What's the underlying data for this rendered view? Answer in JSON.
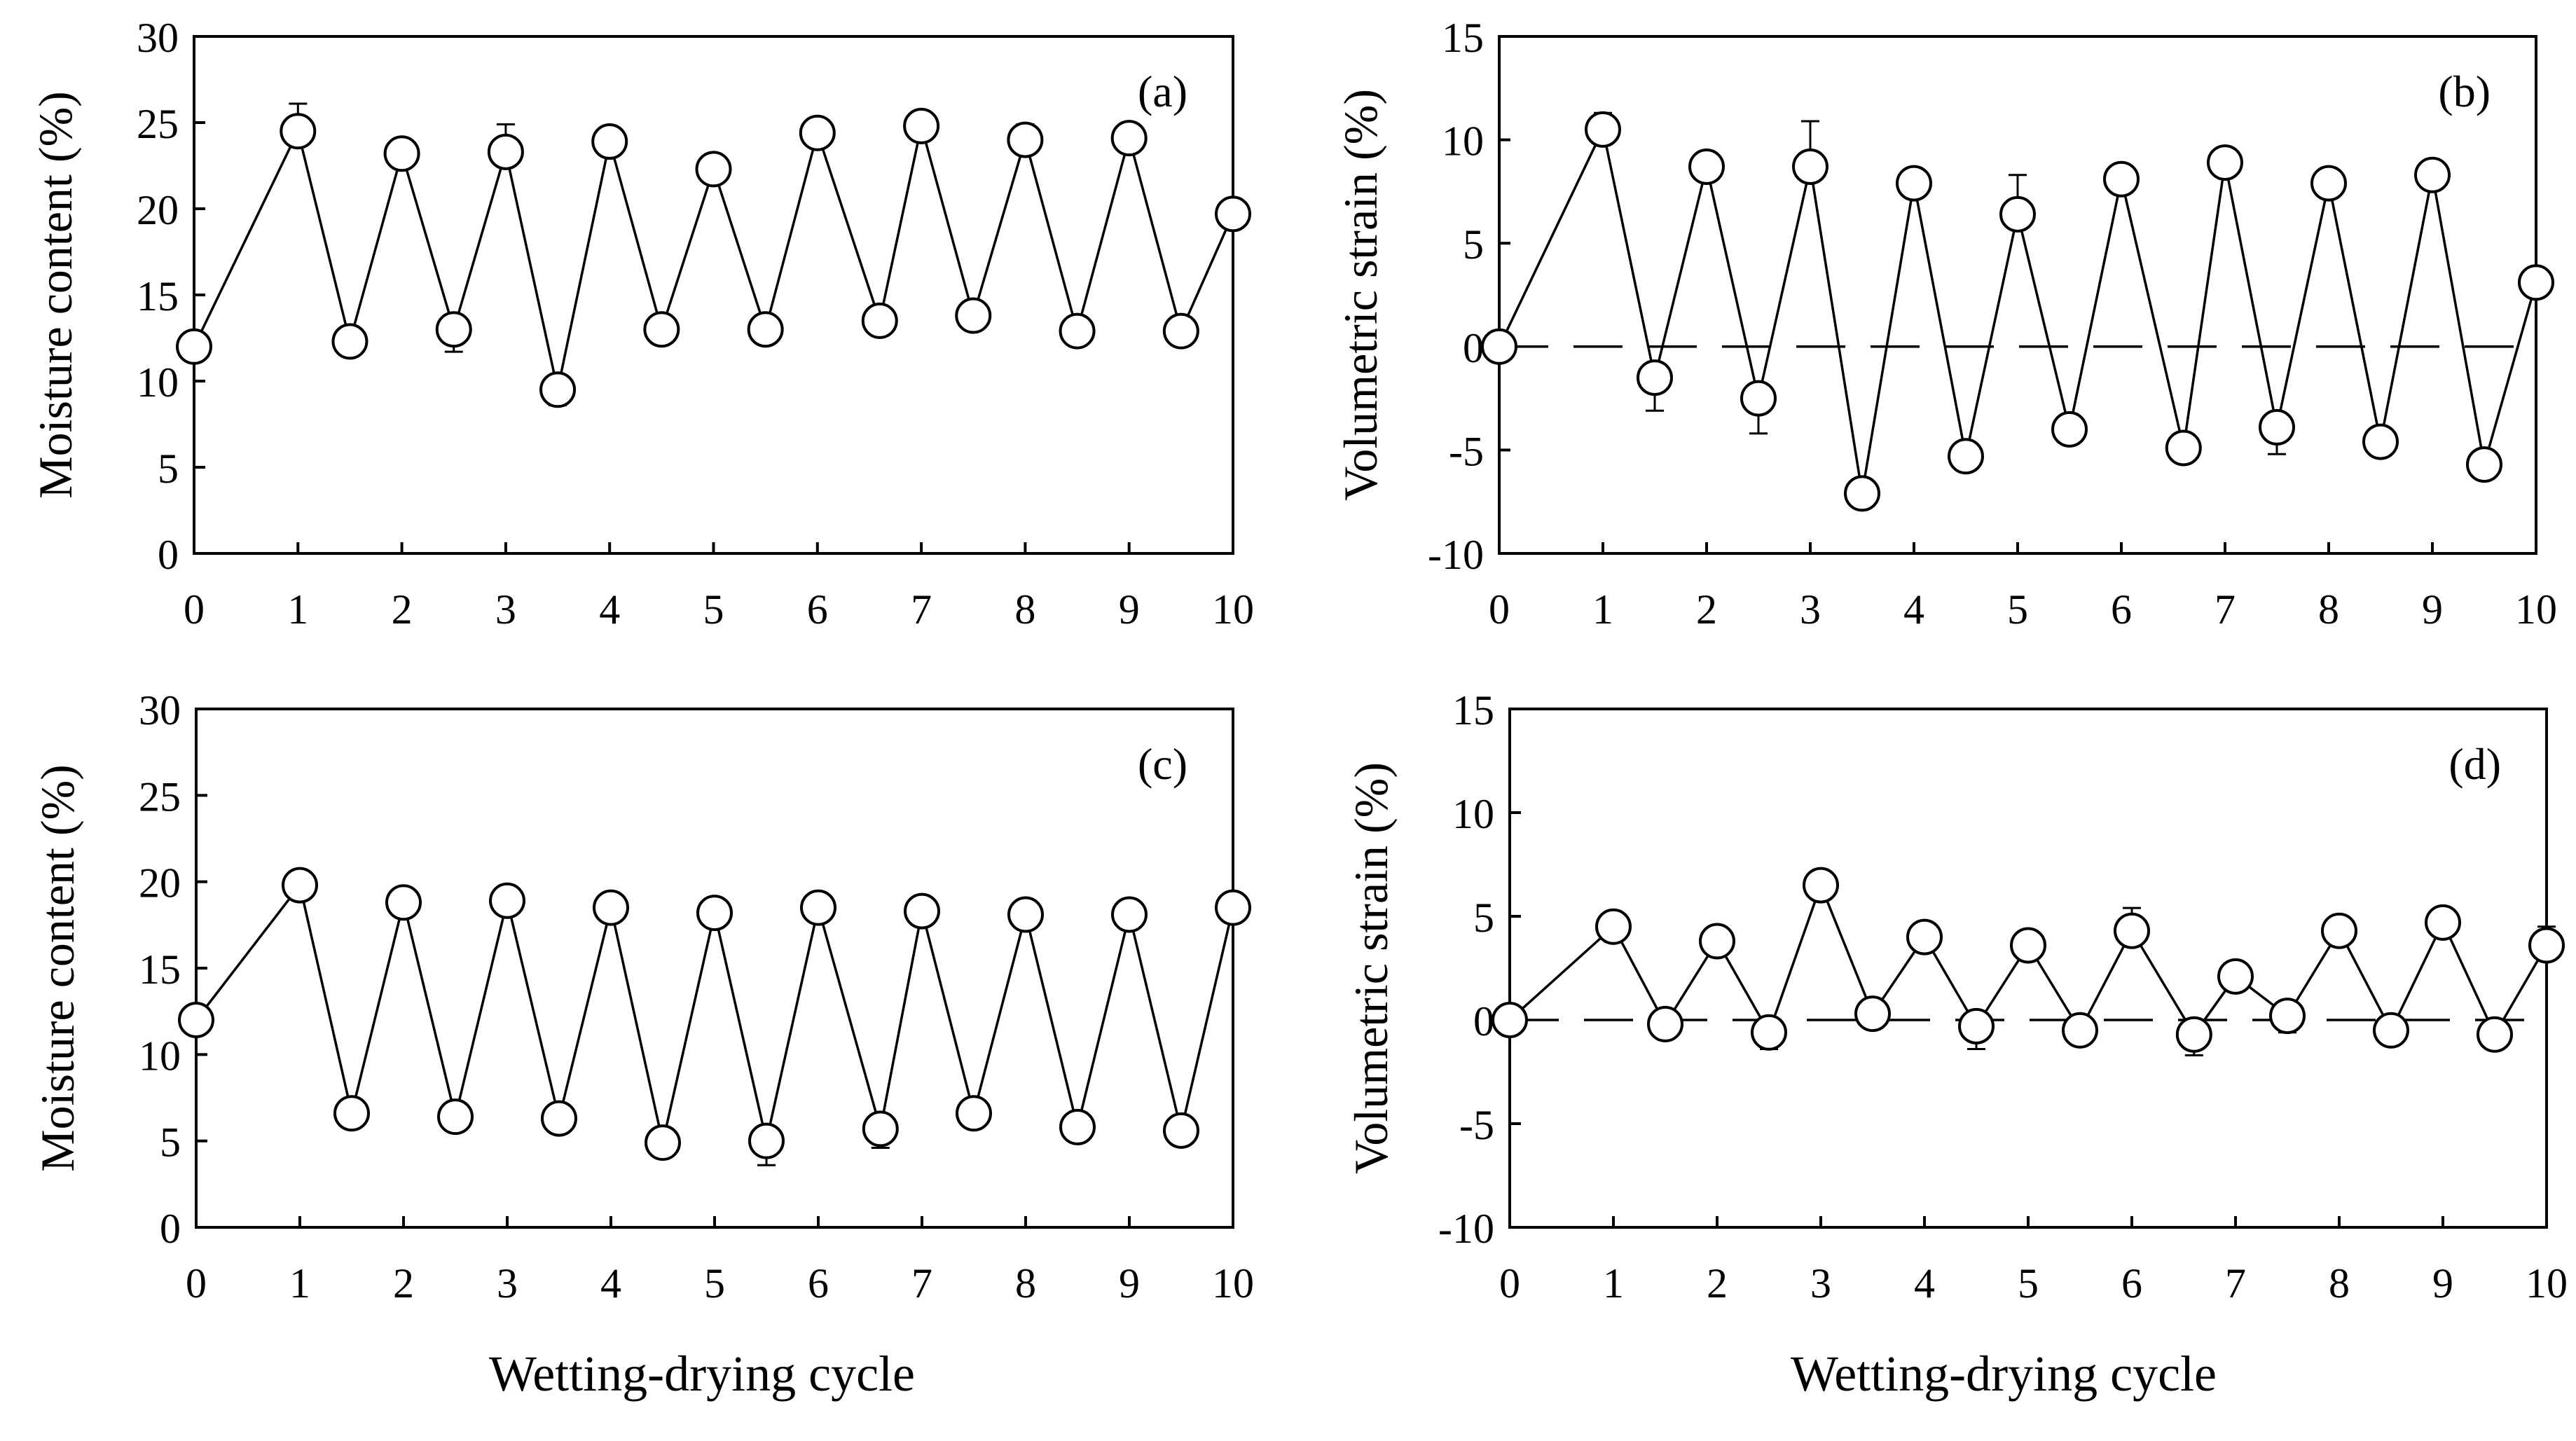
{
  "figure": {
    "shared_xlabel": "Wetting-drying cycle"
  },
  "chart_data": [
    {
      "id": "a",
      "type": "line",
      "label": "(a)",
      "ylabel": "Moisture content (%)",
      "xlim": [
        0,
        10
      ],
      "ylim": [
        0,
        30
      ],
      "x_ticks": [
        0,
        1,
        2,
        3,
        4,
        5,
        6,
        7,
        8,
        9,
        10
      ],
      "y_ticks": [
        0,
        5,
        10,
        15,
        20,
        25,
        30
      ],
      "zero_line": false,
      "grid": false,
      "x": [
        0,
        1,
        1.5,
        2,
        2.5,
        3,
        3.5,
        4,
        4.5,
        5,
        5.5,
        6,
        6.6,
        7,
        7.5,
        8,
        8.5,
        9,
        9.5,
        10
      ],
      "y": [
        12,
        24.5,
        12.3,
        23.2,
        13,
        23.3,
        9.5,
        23.9,
        13,
        22.3,
        13,
        24.4,
        13.5,
        24.8,
        13.8,
        24,
        12.9,
        24.1,
        12.9,
        19.7
      ],
      "error": [
        0,
        1.6,
        0.6,
        0,
        1.3,
        1.6,
        0.9,
        0,
        0,
        0,
        0,
        0,
        0,
        0,
        0,
        0.9,
        0,
        0,
        0,
        0
      ]
    },
    {
      "id": "b",
      "type": "line",
      "label": "(b)",
      "ylabel": "Volumetric strain (%)",
      "xlim": [
        0,
        10
      ],
      "ylim": [
        -10,
        15
      ],
      "x_ticks": [
        0,
        1,
        2,
        3,
        4,
        5,
        6,
        7,
        8,
        9,
        10
      ],
      "y_ticks": [
        -10,
        -5,
        0,
        5,
        10,
        15
      ],
      "zero_line": true,
      "grid": false,
      "x": [
        0,
        1,
        1.5,
        2,
        2.5,
        3,
        3.5,
        4,
        4.5,
        5,
        5.5,
        6,
        6.6,
        7,
        7.5,
        8,
        8.5,
        9,
        9.5,
        10
      ],
      "y": [
        0,
        10.5,
        -1.5,
        8.7,
        -2.5,
        8.7,
        -7.1,
        7.9,
        -5.3,
        6.4,
        -4,
        8.1,
        -4.9,
        8.9,
        -3.9,
        7.9,
        -4.6,
        8.3,
        -5.7,
        3.1
      ],
      "error": [
        0,
        0.8,
        1.6,
        0,
        1.7,
        2.2,
        0.7,
        0,
        0,
        1.9,
        0,
        0,
        0,
        0,
        1.3,
        0,
        0,
        0,
        0,
        0
      ]
    },
    {
      "id": "c",
      "type": "line",
      "label": "(c)",
      "ylabel": "Moisture content (%)",
      "xlim": [
        0,
        10
      ],
      "ylim": [
        0,
        30
      ],
      "x_ticks": [
        0,
        1,
        2,
        3,
        4,
        5,
        6,
        7,
        8,
        9,
        10
      ],
      "y_ticks": [
        0,
        5,
        10,
        15,
        20,
        25,
        30
      ],
      "zero_line": false,
      "grid": false,
      "x": [
        0,
        1,
        1.5,
        2,
        2.5,
        3,
        3.5,
        4,
        4.5,
        5,
        5.5,
        6,
        6.6,
        7,
        7.5,
        8,
        8.5,
        9,
        9.5,
        10
      ],
      "y": [
        12,
        19.8,
        6.6,
        18.8,
        6.4,
        18.9,
        6.3,
        18.5,
        4.9,
        18.2,
        5,
        18.5,
        5.7,
        18.3,
        6.6,
        18.1,
        5.8,
        18.1,
        5.6,
        18.5
      ],
      "error": [
        0,
        0,
        0,
        0,
        0,
        0,
        0,
        0,
        0,
        0,
        1.4,
        0,
        1.1,
        0,
        0,
        0,
        0,
        0,
        0,
        0
      ]
    },
    {
      "id": "d",
      "type": "line",
      "label": "(d)",
      "ylabel": "Volumetric strain (%)",
      "xlim": [
        0,
        10
      ],
      "ylim": [
        -10,
        15
      ],
      "x_ticks": [
        0,
        1,
        2,
        3,
        4,
        5,
        6,
        7,
        8,
        9,
        10
      ],
      "y_ticks": [
        -10,
        -5,
        0,
        5,
        10,
        15
      ],
      "zero_line": true,
      "grid": false,
      "x": [
        0,
        1,
        1.5,
        2,
        2.5,
        3,
        3.5,
        4,
        4.5,
        5,
        5.5,
        6,
        6.6,
        7,
        7.5,
        8,
        8.5,
        9,
        9.5,
        10
      ],
      "y": [
        0,
        4.5,
        -0.2,
        3.8,
        -0.6,
        6.5,
        0.3,
        4,
        -0.3,
        3.6,
        -0.5,
        4.3,
        -0.7,
        2.1,
        0.2,
        4.3,
        -0.5,
        4.7,
        -0.7,
        3.6
      ],
      "error": [
        0,
        0,
        0,
        0,
        0.8,
        0,
        0,
        0,
        1.1,
        0,
        0,
        1.1,
        1,
        0,
        0.8,
        0,
        0,
        0,
        0,
        0.9
      ]
    }
  ]
}
